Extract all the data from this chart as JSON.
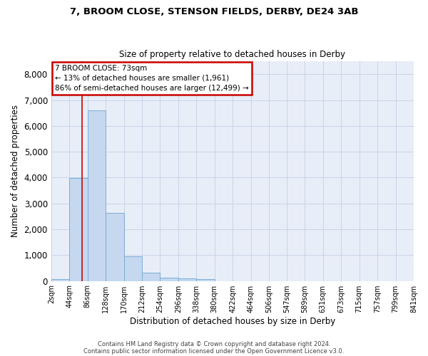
{
  "title1": "7, BROOM CLOSE, STENSON FIELDS, DERBY, DE24 3AB",
  "title2": "Size of property relative to detached houses in Derby",
  "xlabel": "Distribution of detached houses by size in Derby",
  "ylabel": "Number of detached properties",
  "footer1": "Contains HM Land Registry data © Crown copyright and database right 2024.",
  "footer2": "Contains public sector information licensed under the Open Government Licence v3.0.",
  "annotation_line1": "7 BROOM CLOSE: 73sqm",
  "annotation_line2": "← 13% of detached houses are smaller (1,961)",
  "annotation_line3": "86% of semi-detached houses are larger (12,499) →",
  "bar_color": "#c5d8f0",
  "bar_edge_color": "#7aadd4",
  "annotation_box_facecolor": "#ffffff",
  "annotation_box_edgecolor": "#cc0000",
  "grid_color": "#c8d4e8",
  "bg_color": "#e8eef8",
  "vline_color": "#cc0000",
  "ylim": [
    0,
    8500
  ],
  "yticks": [
    0,
    1000,
    2000,
    3000,
    4000,
    5000,
    6000,
    7000,
    8000
  ],
  "bin_edges": [
    2,
    44,
    86,
    128,
    170,
    212,
    254,
    296,
    338,
    380,
    422,
    464,
    506,
    547,
    589,
    631,
    673,
    715,
    757,
    799,
    841
  ],
  "bin_labels": [
    "2sqm",
    "44sqm",
    "86sqm",
    "128sqm",
    "170sqm",
    "212sqm",
    "254sqm",
    "296sqm",
    "338sqm",
    "380sqm",
    "422sqm",
    "464sqm",
    "506sqm",
    "547sqm",
    "589sqm",
    "631sqm",
    "673sqm",
    "715sqm",
    "757sqm",
    "799sqm",
    "841sqm"
  ],
  "bar_heights": [
    70,
    3980,
    6590,
    2620,
    960,
    310,
    120,
    100,
    75,
    0,
    0,
    0,
    0,
    0,
    0,
    0,
    0,
    0,
    0,
    0
  ],
  "vline_x": 73
}
